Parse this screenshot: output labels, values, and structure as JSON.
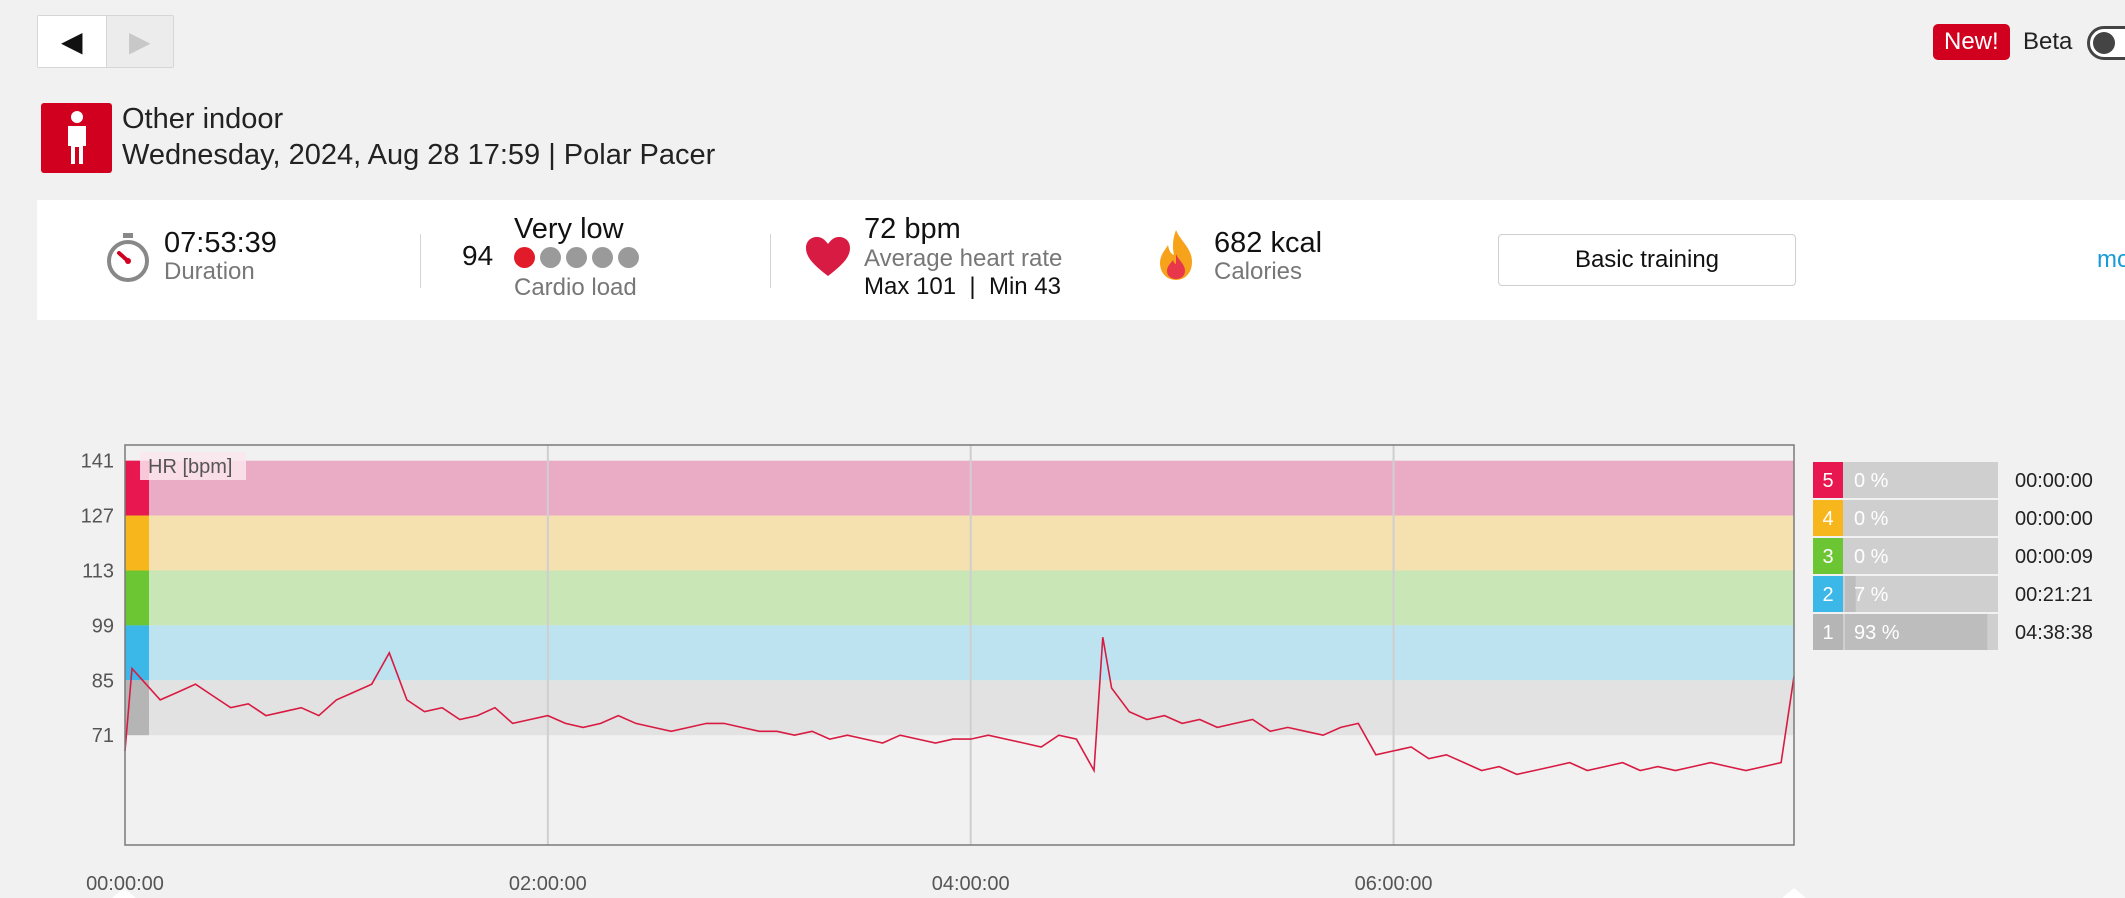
{
  "nav": {
    "back_icon": "◀",
    "forward_icon": "▶"
  },
  "badge": {
    "new": "New!",
    "beta": "Beta"
  },
  "header": {
    "sport": "Other indoor",
    "meta": "Wednesday, 2024, Aug 28 17:59 | Polar Pacer",
    "icon": "person-icon"
  },
  "summary": {
    "duration": {
      "value": "07:53:39",
      "label": "Duration"
    },
    "cardio": {
      "score": "94",
      "level": "Very low",
      "label": "Cardio load",
      "dots_filled": 1,
      "dots_total": 5
    },
    "heart": {
      "value": "72 bpm",
      "label": "Average heart rate",
      "minmax": "Max 101  |  Min 43"
    },
    "calories": {
      "value": "682 kcal",
      "label": "Calories"
    },
    "benefit_button": "Basic training",
    "more": "mo"
  },
  "colors": {
    "brand": "#d1001f",
    "z5": "#e8174f",
    "z4": "#f7b61b",
    "z3": "#6cc533",
    "z2": "#3bb7e8",
    "z1": "#b5b5b5",
    "hr_line": "#d81b42",
    "link": "#1a9ad6"
  },
  "chart_data": {
    "type": "line",
    "title": "HR [bpm]",
    "xlabel": "",
    "ylabel": "",
    "xlim_seconds": [
      0,
      28419
    ],
    "ylim": [
      43,
      145
    ],
    "yticks": [
      "141",
      "127",
      "113",
      "99",
      "85",
      "71"
    ],
    "ytick_values": [
      141,
      127,
      113,
      99,
      85,
      71
    ],
    "xticks": [
      "00:00:00",
      "02:00:00",
      "04:00:00",
      "06:00:00"
    ],
    "xtick_values_seconds": [
      0,
      7200,
      14400,
      21600
    ],
    "zones": [
      {
        "zone": "5",
        "from": 127,
        "to": 141,
        "band_color": "#eaacc4",
        "percent": "0 %",
        "time": "00:00:00"
      },
      {
        "zone": "4",
        "from": 113,
        "to": 127,
        "band_color": "#f5e0b0",
        "percent": "0 %",
        "time": "00:00:00"
      },
      {
        "zone": "3",
        "from": 99,
        "to": 113,
        "band_color": "#c9e6b6",
        "percent": "0 %",
        "time": "00:00:09"
      },
      {
        "zone": "2",
        "from": 85,
        "to": 99,
        "band_color": "#bde3f1",
        "percent": "7 %",
        "time": "00:21:21"
      },
      {
        "zone": "1",
        "from": 71,
        "to": 85,
        "band_color": "#e2e2e2",
        "percent": "93 %",
        "time": "04:38:38"
      }
    ],
    "series": [
      {
        "x_seconds": [
          0,
          120,
          300,
          600,
          900,
          1200,
          1500,
          1800,
          2100,
          2400,
          2700,
          3000,
          3300,
          3600,
          3900,
          4200,
          4500,
          4800,
          5100,
          5400,
          5700,
          6000,
          6300,
          6600,
          6900,
          7200,
          7500,
          7800,
          8100,
          8400,
          8700,
          9000,
          9300,
          9600,
          9900,
          10200,
          10500,
          10800,
          11100,
          11400,
          11700,
          12000,
          12300,
          12600,
          12900,
          13200,
          13500,
          13800,
          14100,
          14400,
          14700,
          15000,
          15300,
          15600,
          15900,
          16200,
          16500,
          16650,
          16800,
          17100,
          17400,
          17700,
          18000,
          18300,
          18600,
          18900,
          19200,
          19500,
          19800,
          20100,
          20400,
          20700,
          21000,
          21300,
          21600,
          21900,
          22200,
          22500,
          22800,
          23100,
          23400,
          23700,
          24000,
          24300,
          24600,
          24900,
          25200,
          25500,
          25800,
          26100,
          26400,
          26700,
          27000,
          27300,
          27600,
          27900,
          28200,
          28419
        ],
        "values": [
          67,
          88,
          85,
          80,
          82,
          84,
          81,
          78,
          79,
          76,
          77,
          78,
          76,
          80,
          82,
          84,
          92,
          80,
          77,
          78,
          75,
          76,
          78,
          74,
          75,
          76,
          74,
          73,
          74,
          76,
          74,
          73,
          72,
          73,
          74,
          74,
          73,
          72,
          72,
          71,
          72,
          70,
          71,
          70,
          69,
          71,
          70,
          69,
          70,
          70,
          71,
          70,
          69,
          68,
          71,
          70,
          62,
          96,
          83,
          77,
          75,
          76,
          74,
          75,
          73,
          74,
          75,
          72,
          73,
          72,
          71,
          73,
          74,
          66,
          67,
          68,
          65,
          66,
          64,
          62,
          63,
          61,
          62,
          63,
          64,
          62,
          63,
          64,
          62,
          63,
          62,
          63,
          64,
          63,
          62,
          63,
          64,
          86
        ]
      }
    ]
  }
}
